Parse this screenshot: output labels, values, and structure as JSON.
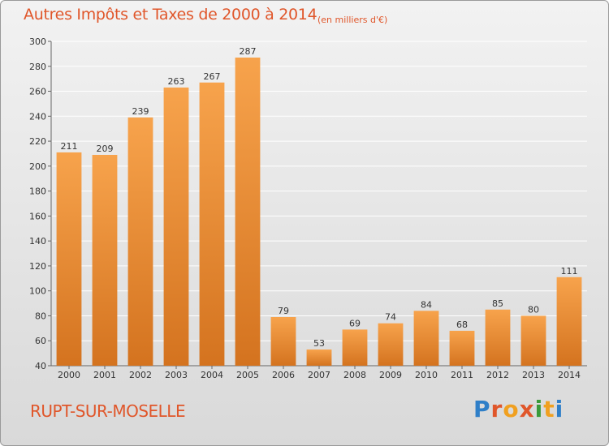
{
  "header": {
    "title": "Autres Impôts et Taxes de 2000 à 2014",
    "unit": "(en milliers d'€)"
  },
  "footer": {
    "commune": "RUPT-SUR-MOSELLE",
    "logo_text": "Proxiti",
    "logo_colors": [
      "#2f7fc8",
      "#e0562a",
      "#f0a020",
      "#e0562a",
      "#3a9a3a",
      "#f0a020",
      "#2f7fc8"
    ]
  },
  "colors": {
    "bar_light": "#f7a34c",
    "bar_dark": "#d4731f",
    "grid": "#ffffff",
    "axis_text": "#333333",
    "title": "#e0562a"
  },
  "chart_data": {
    "type": "bar",
    "categories": [
      "2000",
      "2001",
      "2002",
      "2003",
      "2004",
      "2005",
      "2006",
      "2007",
      "2008",
      "2009",
      "2010",
      "2011",
      "2012",
      "2013",
      "2014"
    ],
    "values": [
      211,
      209,
      239,
      263,
      267,
      287,
      79,
      53,
      69,
      74,
      84,
      68,
      85,
      80,
      111
    ],
    "title": "Autres Impôts et Taxes de 2000 à 2014",
    "ylim": [
      40,
      300
    ],
    "yticks": [
      40,
      60,
      80,
      100,
      120,
      140,
      160,
      180,
      200,
      220,
      240,
      260,
      280,
      300
    ],
    "grid": true
  }
}
